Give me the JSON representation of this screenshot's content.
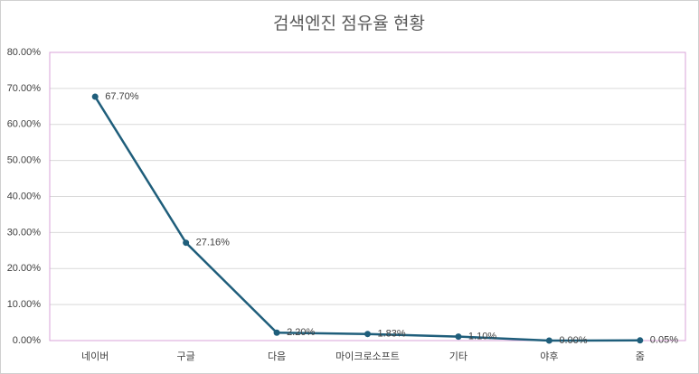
{
  "chart_data": {
    "type": "line",
    "title": "검색엔진 점유율 현황",
    "categories": [
      "네이버",
      "구글",
      "다음",
      "마이크로소프트",
      "기타",
      "야후",
      "줌"
    ],
    "series": [
      {
        "color": "#1f5e7b",
        "values": [
          67.7,
          27.16,
          2.2,
          1.83,
          1.1,
          0.0,
          0.05
        ],
        "value_labels": [
          "67.70%",
          "27.16%",
          "2.20%",
          "1.83%",
          "1.10%",
          "0.00%",
          "0.05%"
        ]
      }
    ],
    "ylim": [
      0,
      80
    ],
    "yticks": [
      {
        "value": 0,
        "label": "0.00%"
      },
      {
        "value": 10,
        "label": "10.00%"
      },
      {
        "value": 20,
        "label": "20.00%"
      },
      {
        "value": 30,
        "label": "30.00%"
      },
      {
        "value": 40,
        "label": "40.00%"
      },
      {
        "value": 50,
        "label": "50.00%"
      },
      {
        "value": 60,
        "label": "60.00%"
      },
      {
        "value": 70,
        "label": "70.00%"
      },
      {
        "value": 80,
        "label": "80.00%"
      }
    ],
    "grid": true
  }
}
